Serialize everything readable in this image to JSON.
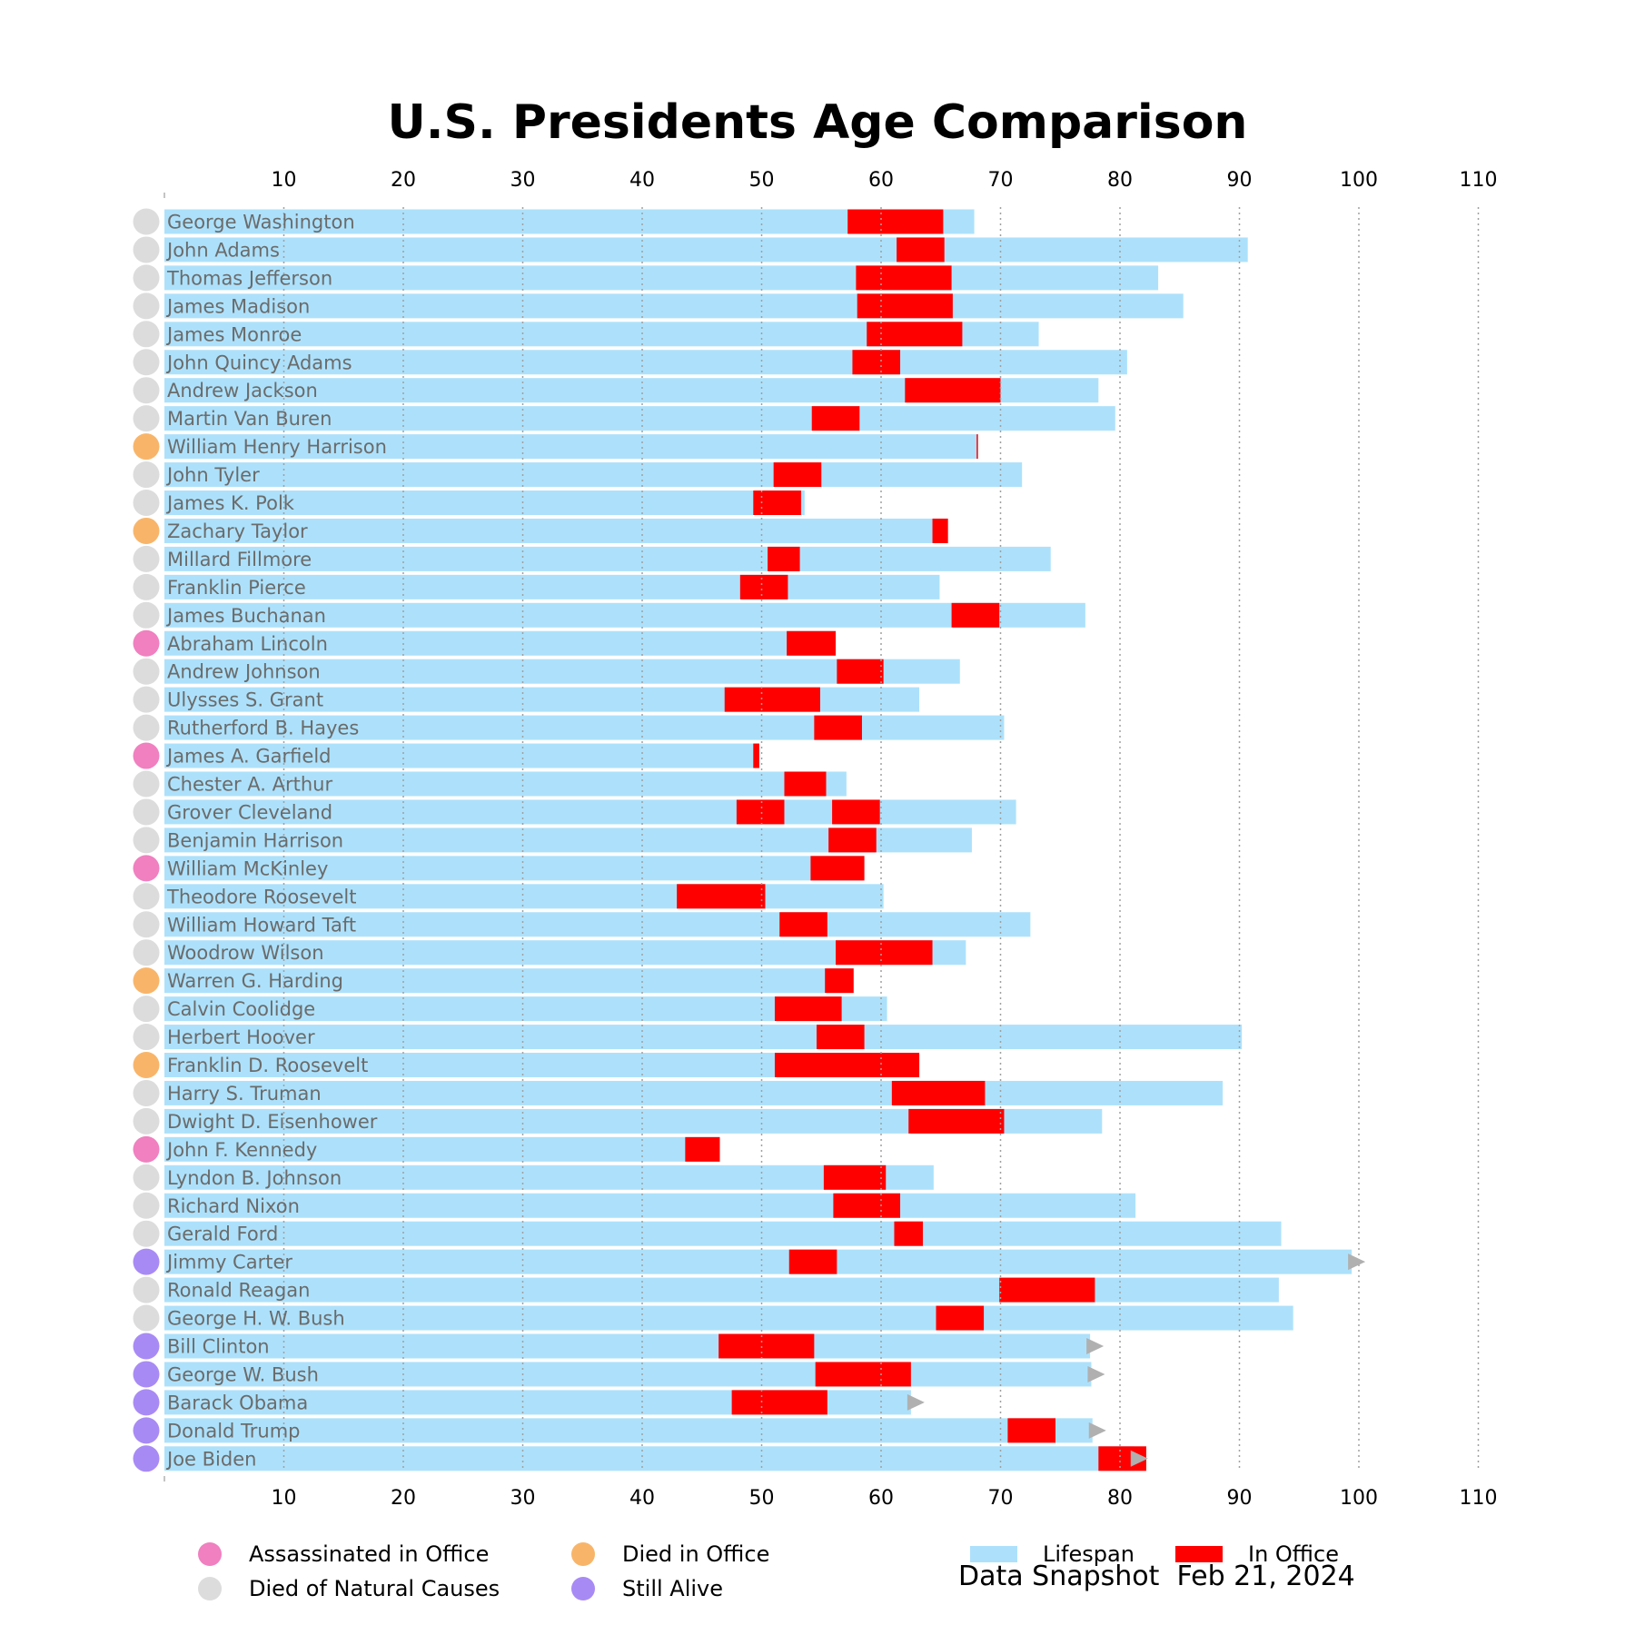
{
  "chart_data": {
    "type": "bar",
    "orientation": "horizontal",
    "title": "U.S. Presidents Age Comparison",
    "xlabel": "",
    "ylabel": "",
    "xlim": [
      0,
      112
    ],
    "xticks": [
      10,
      20,
      30,
      40,
      50,
      60,
      70,
      80,
      90,
      100,
      110
    ],
    "grid": "vertical dotted",
    "legend_placement": "bottom",
    "colors": {
      "lifespan": "#ade1fb",
      "in_office": "#ff0000",
      "assassinated": "#f080c0",
      "died_in_office": "#f8b56a",
      "natural": "#dcdcdc",
      "alive": "#a88af5",
      "arrow": "#b0b0b0",
      "name_text": "#6b6b6b"
    },
    "legend": {
      "assassinated": "Assassinated in Office",
      "natural": "Died of Natural Causes",
      "died_in_office": "Died in Office",
      "alive": "Still Alive",
      "lifespan": "Lifespan",
      "in_office": "In Office"
    },
    "snapshot_label": "Data Snapshot",
    "snapshot_date": "Feb 21, 2024",
    "presidents": [
      {
        "name": "George Washington",
        "status": "natural",
        "lifespan": 67.8,
        "terms": [
          [
            57.2,
            65.2
          ]
        ]
      },
      {
        "name": "John Adams",
        "status": "natural",
        "lifespan": 90.7,
        "terms": [
          [
            61.3,
            65.3
          ]
        ]
      },
      {
        "name": "Thomas Jefferson",
        "status": "natural",
        "lifespan": 83.2,
        "terms": [
          [
            57.9,
            65.9
          ]
        ]
      },
      {
        "name": "James Madison",
        "status": "natural",
        "lifespan": 85.3,
        "terms": [
          [
            58.0,
            66.0
          ]
        ]
      },
      {
        "name": "James Monroe",
        "status": "natural",
        "lifespan": 73.2,
        "terms": [
          [
            58.8,
            66.8
          ]
        ]
      },
      {
        "name": "John Quincy Adams",
        "status": "natural",
        "lifespan": 80.6,
        "terms": [
          [
            57.6,
            61.6
          ]
        ]
      },
      {
        "name": "Andrew Jackson",
        "status": "natural",
        "lifespan": 78.2,
        "terms": [
          [
            62.0,
            70.0
          ]
        ]
      },
      {
        "name": "Martin Van Buren",
        "status": "natural",
        "lifespan": 79.6,
        "terms": [
          [
            54.2,
            58.2
          ]
        ]
      },
      {
        "name": "William Henry Harrison",
        "status": "died_in_office",
        "lifespan": 68.1,
        "terms": [
          [
            68.0,
            68.1
          ]
        ]
      },
      {
        "name": "John Tyler",
        "status": "natural",
        "lifespan": 71.8,
        "terms": [
          [
            51.0,
            55.0
          ]
        ]
      },
      {
        "name": "James K. Polk",
        "status": "natural",
        "lifespan": 53.6,
        "terms": [
          [
            49.3,
            53.3
          ]
        ]
      },
      {
        "name": "Zachary Taylor",
        "status": "died_in_office",
        "lifespan": 65.6,
        "terms": [
          [
            64.3,
            65.6
          ]
        ]
      },
      {
        "name": "Millard Fillmore",
        "status": "natural",
        "lifespan": 74.2,
        "terms": [
          [
            50.5,
            53.2
          ]
        ]
      },
      {
        "name": "Franklin Pierce",
        "status": "natural",
        "lifespan": 64.9,
        "terms": [
          [
            48.2,
            52.2
          ]
        ]
      },
      {
        "name": "James Buchanan",
        "status": "natural",
        "lifespan": 77.1,
        "terms": [
          [
            65.9,
            69.9
          ]
        ]
      },
      {
        "name": "Abraham Lincoln",
        "status": "assassinated",
        "lifespan": 56.2,
        "terms": [
          [
            52.1,
            56.2
          ]
        ]
      },
      {
        "name": "Andrew Johnson",
        "status": "natural",
        "lifespan": 66.6,
        "terms": [
          [
            56.3,
            60.2
          ]
        ]
      },
      {
        "name": "Ulysses S. Grant",
        "status": "natural",
        "lifespan": 63.2,
        "terms": [
          [
            46.9,
            54.9
          ]
        ]
      },
      {
        "name": "Rutherford B. Hayes",
        "status": "natural",
        "lifespan": 70.3,
        "terms": [
          [
            54.4,
            58.4
          ]
        ]
      },
      {
        "name": "James A. Garfield",
        "status": "assassinated",
        "lifespan": 49.8,
        "terms": [
          [
            49.3,
            49.8
          ]
        ]
      },
      {
        "name": "Chester A. Arthur",
        "status": "natural",
        "lifespan": 57.1,
        "terms": [
          [
            51.9,
            55.4
          ]
        ]
      },
      {
        "name": "Grover Cleveland",
        "status": "natural",
        "lifespan": 71.3,
        "terms": [
          [
            47.9,
            51.9
          ],
          [
            55.9,
            59.9
          ]
        ]
      },
      {
        "name": "Benjamin Harrison",
        "status": "natural",
        "lifespan": 67.6,
        "terms": [
          [
            55.6,
            59.6
          ]
        ]
      },
      {
        "name": "William McKinley",
        "status": "assassinated",
        "lifespan": 58.6,
        "terms": [
          [
            54.1,
            58.6
          ]
        ]
      },
      {
        "name": "Theodore Roosevelt",
        "status": "natural",
        "lifespan": 60.2,
        "terms": [
          [
            42.9,
            50.3
          ]
        ]
      },
      {
        "name": "William Howard Taft",
        "status": "natural",
        "lifespan": 72.5,
        "terms": [
          [
            51.5,
            55.5
          ]
        ]
      },
      {
        "name": "Woodrow Wilson",
        "status": "natural",
        "lifespan": 67.1,
        "terms": [
          [
            56.2,
            64.3
          ]
        ]
      },
      {
        "name": "Warren G. Harding",
        "status": "died_in_office",
        "lifespan": 57.7,
        "terms": [
          [
            55.3,
            57.7
          ]
        ]
      },
      {
        "name": "Calvin Coolidge",
        "status": "natural",
        "lifespan": 60.5,
        "terms": [
          [
            51.1,
            56.7
          ]
        ]
      },
      {
        "name": "Herbert Hoover",
        "status": "natural",
        "lifespan": 90.2,
        "terms": [
          [
            54.6,
            58.6
          ]
        ]
      },
      {
        "name": "Franklin D. Roosevelt",
        "status": "died_in_office",
        "lifespan": 63.2,
        "terms": [
          [
            51.1,
            63.2
          ]
        ]
      },
      {
        "name": "Harry S. Truman",
        "status": "natural",
        "lifespan": 88.6,
        "terms": [
          [
            60.9,
            68.7
          ]
        ]
      },
      {
        "name": "Dwight D. Eisenhower",
        "status": "natural",
        "lifespan": 78.5,
        "terms": [
          [
            62.3,
            70.3
          ]
        ]
      },
      {
        "name": "John F. Kennedy",
        "status": "assassinated",
        "lifespan": 46.5,
        "terms": [
          [
            43.6,
            46.5
          ]
        ]
      },
      {
        "name": "Lyndon B. Johnson",
        "status": "natural",
        "lifespan": 64.4,
        "terms": [
          [
            55.2,
            60.4
          ]
        ]
      },
      {
        "name": "Richard Nixon",
        "status": "natural",
        "lifespan": 81.3,
        "terms": [
          [
            56.0,
            61.6
          ]
        ]
      },
      {
        "name": "Gerald Ford",
        "status": "natural",
        "lifespan": 93.5,
        "terms": [
          [
            61.1,
            63.5
          ]
        ]
      },
      {
        "name": "Jimmy Carter",
        "status": "alive",
        "lifespan": 99.4,
        "terms": [
          [
            52.3,
            56.3
          ]
        ]
      },
      {
        "name": "Ronald Reagan",
        "status": "natural",
        "lifespan": 93.3,
        "terms": [
          [
            69.9,
            77.9
          ]
        ]
      },
      {
        "name": "George H. W. Bush",
        "status": "natural",
        "lifespan": 94.5,
        "terms": [
          [
            64.6,
            68.6
          ]
        ]
      },
      {
        "name": "Bill Clinton",
        "status": "alive",
        "lifespan": 77.5,
        "terms": [
          [
            46.4,
            54.4
          ]
        ]
      },
      {
        "name": "George W. Bush",
        "status": "alive",
        "lifespan": 77.6,
        "terms": [
          [
            54.5,
            62.5
          ]
        ]
      },
      {
        "name": "Barack Obama",
        "status": "alive",
        "lifespan": 62.5,
        "terms": [
          [
            47.5,
            55.5
          ]
        ]
      },
      {
        "name": "Donald Trump",
        "status": "alive",
        "lifespan": 77.7,
        "terms": [
          [
            70.6,
            74.6
          ]
        ]
      },
      {
        "name": "Joe Biden",
        "status": "alive",
        "lifespan": 81.2,
        "terms": [
          [
            78.2,
            82.2
          ]
        ]
      }
    ]
  }
}
